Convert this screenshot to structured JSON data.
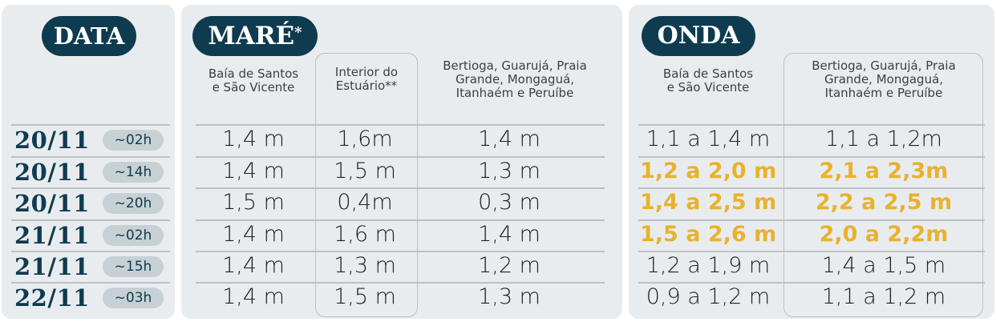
{
  "headers": {
    "data": "DATA",
    "mare": "MARÉ",
    "mare_mark": "*",
    "onda": "ONDA"
  },
  "mare_columns": [
    "Baía de Santos\ne São Vicente",
    "Interior do\nEstuário**",
    "Bertioga, Guarujá, Praia\nGrande, Mongaguá,\nItanhaém e Peruíbe"
  ],
  "onda_columns": [
    "Baía de Santos\ne São Vicente",
    "Bertioga, Guarujá, Praia\nGrande, Mongaguá,\nItanhaém e Peruíbe"
  ],
  "highlight_color": "#e8b22c",
  "rows": [
    {
      "date": "20/11",
      "time": "~02h",
      "mare": [
        "1,4 m",
        "1,6m",
        "1,4 m"
      ],
      "onda": [
        "1,1 a 1,4 m",
        "1,1 a 1,2m"
      ],
      "highlight": false
    },
    {
      "date": "20/11",
      "time": "~14h",
      "mare": [
        "1,4 m",
        "1,5 m",
        "1,3 m"
      ],
      "onda": [
        "1,2 a 2,0 m",
        "2,1 a 2,3m"
      ],
      "highlight": true
    },
    {
      "date": "20/11",
      "time": "~20h",
      "mare": [
        "1,5 m",
        "0,4m",
        "0,3 m"
      ],
      "onda": [
        "1,4 a 2,5 m",
        "2,2 a 2,5 m"
      ],
      "highlight": true
    },
    {
      "date": "21/11",
      "time": "~02h",
      "mare": [
        "1,4 m",
        "1,6 m",
        "1,4 m"
      ],
      "onda": [
        "1,5 a 2,6 m",
        "2,0 a 2,2m"
      ],
      "highlight": true
    },
    {
      "date": "21/11",
      "time": "~15h",
      "mare": [
        "1,4 m",
        "1,3 m",
        "1,2 m"
      ],
      "onda": [
        "1,2 a 1,9 m",
        "1,4 a 1,5 m"
      ],
      "highlight": false
    },
    {
      "date": "22/11",
      "time": "~03h",
      "mare": [
        "1,4 m",
        "1,5 m",
        "1,3 m"
      ],
      "onda": [
        "0,9 a 1,2 m",
        "1,1 a 1,2 m"
      ],
      "highlight": false
    }
  ]
}
